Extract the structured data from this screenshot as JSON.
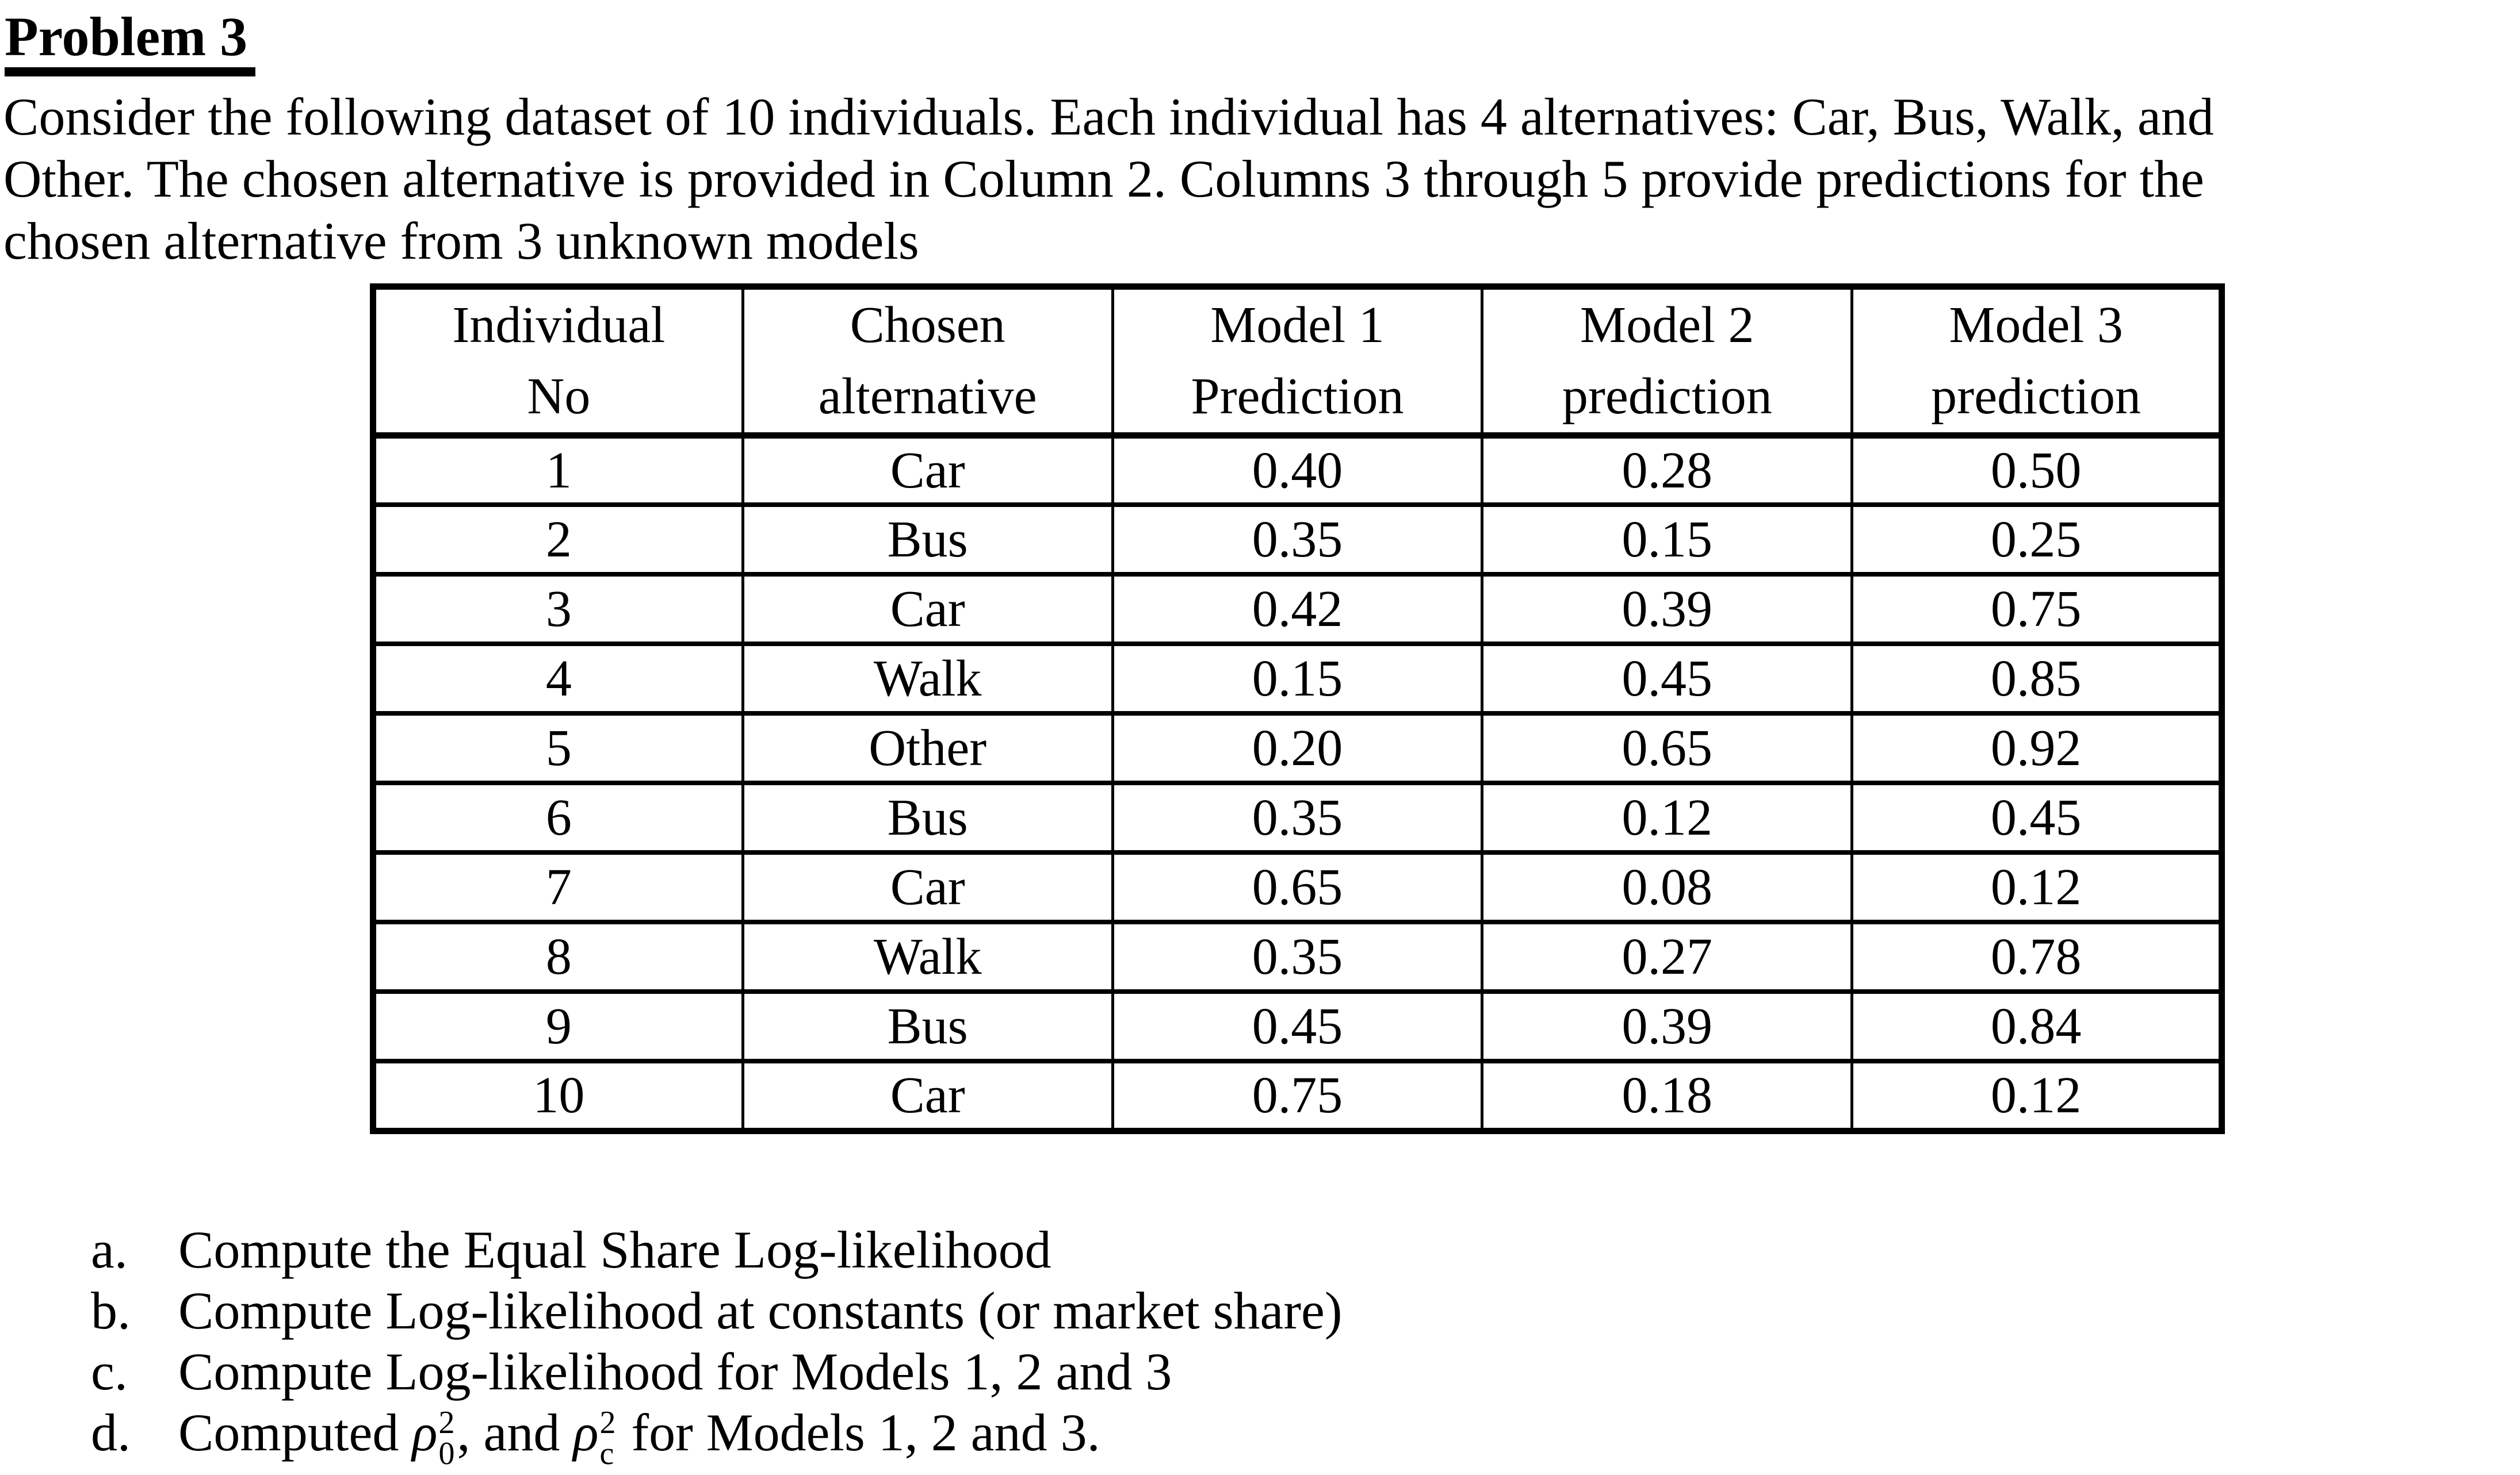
{
  "doc": {
    "title": "Problem 3",
    "paragraph_lines": [
      "Consider the following dataset of 10 individuals. Each individual has 4 alternatives: Car, Bus, Walk, and",
      "Other. The chosen alternative is provided in Column 2. Columns 3 through 5 provide predictions for the",
      "chosen alternative from 3 unknown models"
    ]
  },
  "table": {
    "headers": [
      {
        "line1": "Individual",
        "line2": "No"
      },
      {
        "line1": "Chosen",
        "line2": "alternative"
      },
      {
        "line1": "Model 1",
        "line2": "Prediction"
      },
      {
        "line1": "Model 2",
        "line2": "prediction"
      },
      {
        "line1": "Model 3",
        "line2": "prediction"
      }
    ],
    "rows": [
      [
        "1",
        "Car",
        "0.40",
        "0.28",
        "0.50"
      ],
      [
        "2",
        "Bus",
        "0.35",
        "0.15",
        "0.25"
      ],
      [
        "3",
        "Car",
        "0.42",
        "0.39",
        "0.75"
      ],
      [
        "4",
        "Walk",
        "0.15",
        "0.45",
        "0.85"
      ],
      [
        "5",
        "Other",
        "0.20",
        "0.65",
        "0.92"
      ],
      [
        "6",
        "Bus",
        "0.35",
        "0.12",
        "0.45"
      ],
      [
        "7",
        "Car",
        "0.65",
        "0.08",
        "0.12"
      ],
      [
        "8",
        "Walk",
        "0.35",
        "0.27",
        "0.78"
      ],
      [
        "9",
        "Bus",
        "0.45",
        "0.39",
        "0.84"
      ],
      [
        "10",
        "Car",
        "0.75",
        "0.18",
        "0.12"
      ]
    ]
  },
  "questions": {
    "a": {
      "label": "a.",
      "text": "Compute the Equal Share Log-likelihood"
    },
    "b": {
      "label": "b.",
      "text": "Compute Log-likelihood at constants (or market share)"
    },
    "c": {
      "label": "c.",
      "text": "Compute Log-likelihood for Models 1, 2 and 3"
    },
    "d": {
      "label": "d.",
      "text_start": "Computed ",
      "rho_symbol": "ρ",
      "rho1_sup": "2",
      "rho1_sub": "0",
      "mid_text": ", and ",
      "rho2_sup": "2",
      "rho2_sub": "c",
      "text_end": " for Models 1, 2 and 3."
    }
  }
}
